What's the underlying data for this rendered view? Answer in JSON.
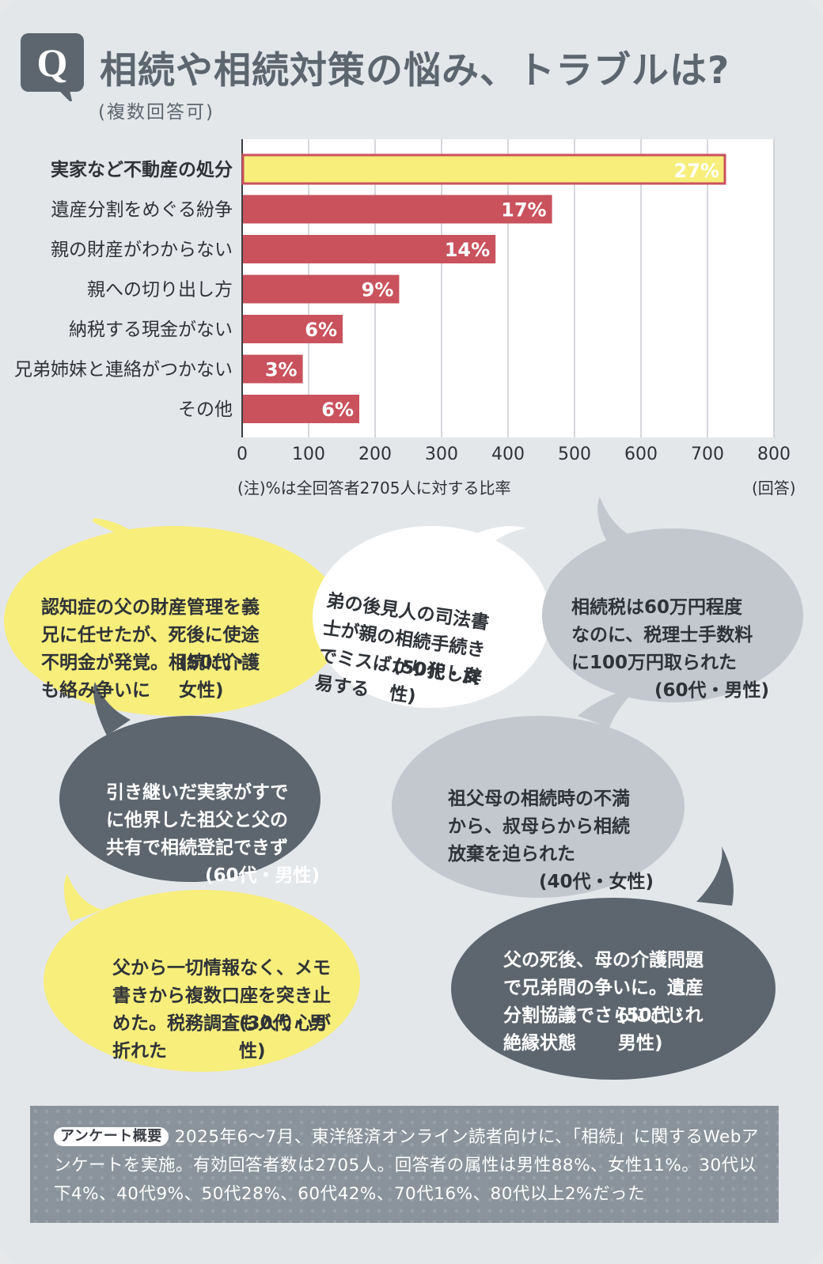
{
  "header": {
    "badge": "Q",
    "title": "相続や相続対策の悩み、トラブルは?",
    "subtitle": "(複数回答可)"
  },
  "chart_data": {
    "type": "bar",
    "orientation": "horizontal",
    "categories": [
      "実家など不動産の処分",
      "遺産分割をめぐる紛争",
      "親の財産がわからない",
      "親への切り出し方",
      "納税する現金がない",
      "兄弟姉妹と連絡がつかない",
      "その他"
    ],
    "values": [
      725,
      465,
      380,
      235,
      150,
      90,
      175
    ],
    "data_labels": [
      "27%",
      "17%",
      "14%",
      "9%",
      "6%",
      "3%",
      "6%"
    ],
    "xlim": [
      0,
      800
    ],
    "xticks": [
      "0",
      "100",
      "200",
      "300",
      "400",
      "500",
      "600",
      "700",
      "800"
    ],
    "xunit": "(回答)",
    "note": "(注)%は全回答者2705人に対する比率",
    "highlight_index": 0,
    "colors": {
      "bar": "#c9525d",
      "highlight": "#f7ee7c",
      "highlight_border": "#c9525d",
      "highlight_text": "#c9525d",
      "grid": "#c8ccd0"
    },
    "grid": true
  },
  "bubbles": [
    {
      "text": "認知症の父の財産管理を義\n兄に任せたが、死後に使途\n不明金が発覚。相続に介護\nも絡み争いに",
      "attribution": "(50代・女性)"
    },
    {
      "text": "弟の後見人の司法書\n士が親の相続手続き\nでミスばかり犯し辟\n易する",
      "attribution": "(50代・女性)"
    },
    {
      "text": "相続税は60万円程度\nなのに、税理士手数料\nに100万円取られた",
      "attribution": "(60代・男性)"
    },
    {
      "text": "引き継いだ実家がすで\nに他界した祖父と父の\n共有で相続登記できず",
      "attribution": "(60代・男性)"
    },
    {
      "text": "祖父母の相続時の不満\nから、叔母らから相続\n放棄を迫られた",
      "attribution": "(40代・女性)"
    },
    {
      "text": "父から一切情報なく、メモ\n書きから複数口座を突き止\nめた。税務調査も入り心が\n折れた",
      "attribution": "(30代・男性)"
    },
    {
      "text": "父の死後、母の介護問題\nで兄弟間の争いに。遺産\n分割協議でさらにこじれ\n絶縁状態",
      "attribution": "(50代・男性)"
    }
  ],
  "summary": {
    "badge": "アンケート概要",
    "text": "2025年6～7月、東洋経済オンライン読者向けに、「相続」に関するWebアンケートを実施。有効回答者数は2705人。回答者の属性は男性88%、女性11%。30代以下4%、40代9%、50代28%、60代42%、70代16%、80代以上2%だった"
  }
}
